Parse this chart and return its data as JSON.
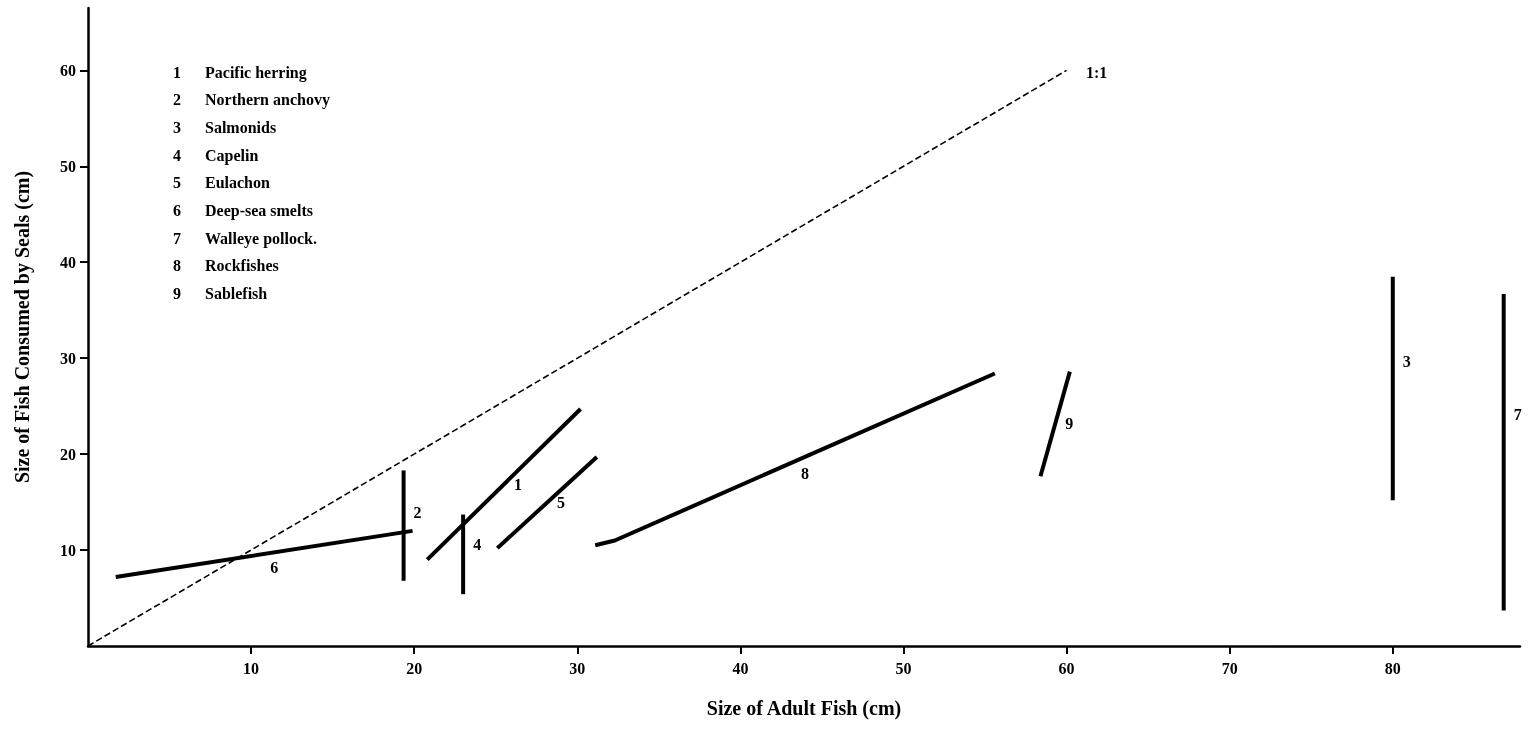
{
  "chart_data": {
    "type": "line",
    "xlabel": "Size of Adult Fish (cm)",
    "ylabel": "Size of Fish Consumed by Seals (cm)",
    "xlim": [
      0,
      87.8
    ],
    "ylim": [
      0,
      66.5
    ],
    "xticks": [
      10,
      20,
      30,
      40,
      50,
      60,
      70,
      80
    ],
    "yticks": [
      10,
      20,
      30,
      40,
      50,
      60
    ],
    "grid": false,
    "legend": false,
    "marker": "none",
    "line_style": "solid",
    "annotations": [
      "1 Pacific herring",
      "2 Northern anchovy",
      "3 Salmonids",
      "4 Capelin",
      "5 Eulachon",
      "6 Deep-sea smelts",
      "7 Walleye pollock.",
      "8 Rockfishes",
      "9 Sablefish"
    ],
    "series": [
      {
        "name": "1:1",
        "color": "#000000",
        "line_style": "dashed",
        "x": [
          0,
          60
        ],
        "values": [
          0,
          60
        ]
      },
      {
        "name": "1",
        "color": "#000000",
        "x": [
          20.8,
          30.2
        ],
        "values": [
          9.0,
          24.7
        ]
      },
      {
        "name": "2",
        "color": "#000000",
        "x": [
          19.35,
          19.35
        ],
        "values": [
          6.8,
          18.3
        ]
      },
      {
        "name": "3",
        "color": "#000000",
        "x": [
          80.0,
          80.0
        ],
        "values": [
          15.2,
          38.5
        ]
      },
      {
        "name": "4",
        "color": "#000000",
        "x": [
          23.0,
          23.0
        ],
        "values": [
          5.4,
          13.7
        ]
      },
      {
        "name": "5",
        "color": "#000000",
        "x": [
          25.1,
          31.2
        ],
        "values": [
          10.2,
          19.7
        ]
      },
      {
        "name": "6",
        "color": "#000000",
        "x": [
          1.7,
          19.9
        ],
        "values": [
          7.2,
          12.0
        ]
      },
      {
        "name": "7",
        "color": "#000000",
        "x": [
          86.8,
          86.8
        ],
        "values": [
          3.7,
          36.7
        ]
      },
      {
        "name": "8",
        "color": "#000000",
        "x": [
          31.1,
          32.3,
          55.6
        ],
        "values": [
          10.5,
          11.0,
          28.4
        ]
      },
      {
        "name": "9",
        "color": "#000000",
        "x": [
          58.4,
          60.2
        ],
        "values": [
          17.7,
          28.6
        ]
      }
    ]
  }
}
